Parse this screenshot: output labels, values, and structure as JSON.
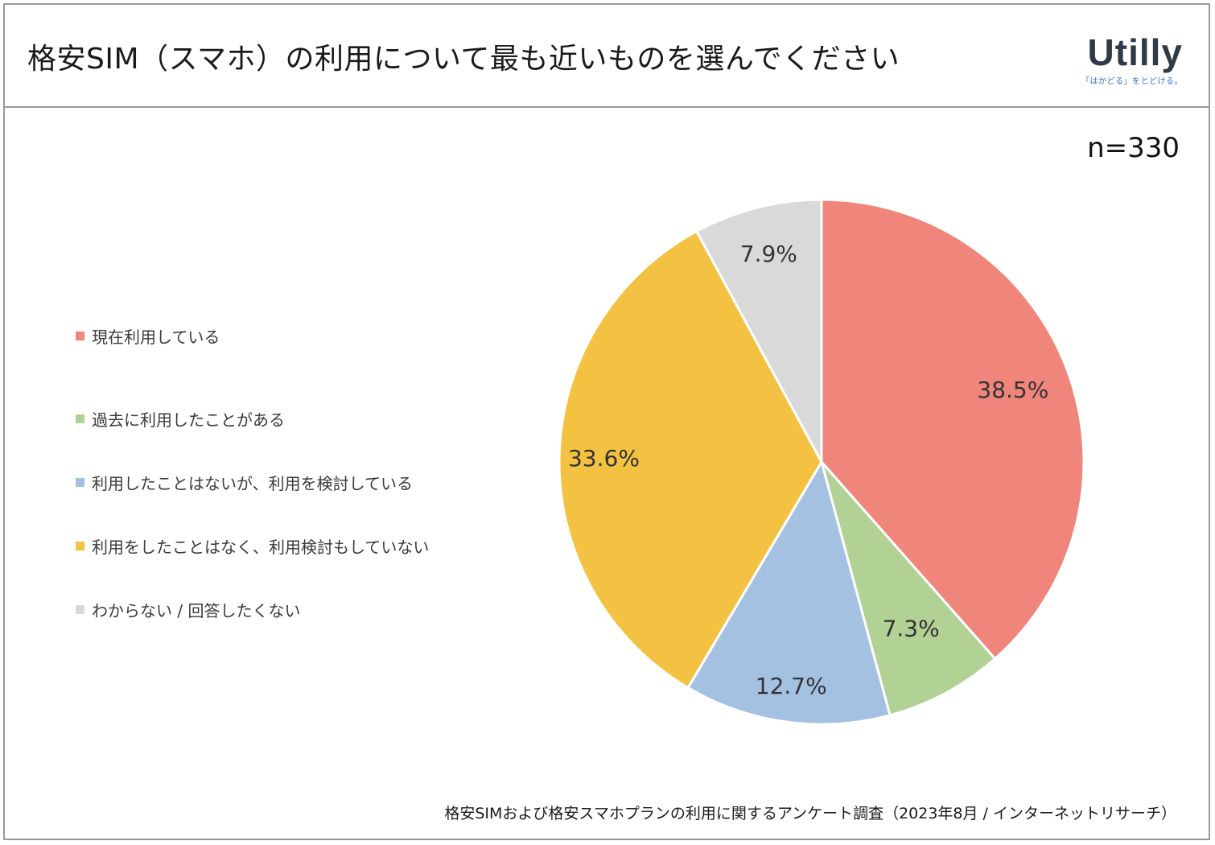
{
  "title": "格安SIM（スマホ）の利用について最も近いものを選んでください",
  "logo": {
    "word": "Utilly",
    "tagline": "「はかどる」をとどける。"
  },
  "n_label": "n=330",
  "source": "格安SIMおよび格安スマホプランの利用に関するアンケート調査（2023年8月 / インターネットリサーチ）",
  "chart_data": {
    "type": "pie",
    "title": "格安SIM（スマホ）の利用について最も近いものを選んでください",
    "n": 330,
    "legend_position": "left",
    "slices": [
      {
        "label": "現在利用している",
        "value": 38.5,
        "display": "38.5%",
        "color": "#f0857b"
      },
      {
        "label": "過去に利用したことがある",
        "value": 7.3,
        "display": "7.3%",
        "color": "#b2d194"
      },
      {
        "label": "利用したことはないが、利用を検討している",
        "value": 12.7,
        "display": "12.7%",
        "color": "#a4c1e2"
      },
      {
        "label": "利用をしたことはなく、利用検討もしていない",
        "value": 33.6,
        "display": "33.6%",
        "color": "#f4c243"
      },
      {
        "label": "わからない / 回答したくない",
        "value": 7.9,
        "display": "7.9%",
        "color": "#d9d9d9"
      }
    ]
  }
}
